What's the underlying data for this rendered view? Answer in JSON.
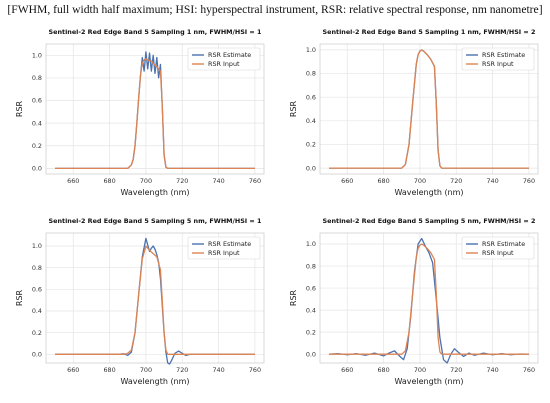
{
  "caption": "[FWHM, full width half maximum; HSI: hyperspectral instrument, RSR: relative spectral response, nm nanometre]",
  "colors": {
    "estimate": "#4c72b0",
    "input": "#dd8452",
    "grid": "#e4e4e4",
    "frame": "#d0d0d0"
  },
  "chart_data": [
    {
      "type": "line",
      "title": "Sentinel-2 Red Edge Band 5 Sampling 1 nm, FWHM/HSI = 1",
      "xlabel": "Wavelength (nm)",
      "ylabel": "RSR",
      "xlim": [
        645,
        765
      ],
      "ylim": [
        -0.05,
        1.1
      ],
      "xticks": [
        660,
        680,
        700,
        720,
        740,
        760
      ],
      "yticks": [
        0.0,
        0.2,
        0.4,
        0.6,
        0.8,
        1.0
      ],
      "ytick_labels": [
        "0.0",
        "0.2",
        "0.4",
        "0.6",
        "0.8",
        "1.0"
      ],
      "grid": true,
      "legend": "top-right",
      "series": [
        {
          "name": "RSR Estimate",
          "color": "#4c72b0",
          "x": [
            650,
            690,
            692,
            693,
            694,
            695,
            696,
            697,
            698,
            699,
            700,
            701,
            702,
            703,
            704,
            705,
            706,
            707,
            708,
            709,
            710,
            711,
            712,
            760
          ],
          "y": [
            0,
            0,
            0.03,
            0.08,
            0.2,
            0.4,
            0.62,
            0.82,
            0.98,
            0.86,
            1.03,
            0.88,
            1.02,
            0.86,
            1.0,
            0.84,
            0.98,
            0.8,
            0.92,
            0.55,
            0.12,
            0.01,
            0,
            0
          ]
        },
        {
          "name": "RSR Input",
          "color": "#dd8452",
          "x": [
            650,
            690,
            692,
            693,
            694,
            695,
            696,
            697,
            698,
            699,
            700,
            701,
            702,
            703,
            704,
            705,
            706,
            707,
            708,
            709,
            710,
            711,
            712,
            760
          ],
          "y": [
            0,
            0,
            0.03,
            0.08,
            0.2,
            0.4,
            0.62,
            0.82,
            0.93,
            0.96,
            0.97,
            0.96,
            0.95,
            0.95,
            0.93,
            0.91,
            0.9,
            0.88,
            0.86,
            0.55,
            0.12,
            0.01,
            0,
            0
          ]
        }
      ]
    },
    {
      "type": "line",
      "title": "Sentinel-2 Red Edge Band 5 Sampling 1 nm, FWHM/HSI = 2",
      "xlabel": "Wavelength (nm)",
      "ylabel": "RSR",
      "xlim": [
        645,
        765
      ],
      "ylim": [
        -0.05,
        1.05
      ],
      "xticks": [
        660,
        680,
        700,
        720,
        740,
        760
      ],
      "yticks": [
        0.0,
        0.2,
        0.4,
        0.6,
        0.8,
        1.0
      ],
      "ytick_labels": [
        "0.0",
        "0.2",
        "0.4",
        "0.6",
        "0.8",
        "1.0"
      ],
      "grid": true,
      "legend": "top-right",
      "series": [
        {
          "name": "RSR Estimate",
          "color": "#4c72b0",
          "x": [
            650,
            690,
            692,
            694,
            696,
            698,
            699,
            700,
            701,
            702,
            704,
            706,
            708,
            709,
            710,
            711,
            712,
            760
          ],
          "y": [
            0,
            0,
            0.03,
            0.2,
            0.55,
            0.88,
            0.96,
            0.99,
            1.0,
            0.99,
            0.96,
            0.92,
            0.86,
            0.55,
            0.15,
            0.02,
            0,
            0
          ]
        },
        {
          "name": "RSR Input",
          "color": "#dd8452",
          "x": [
            650,
            690,
            692,
            694,
            696,
            698,
            699,
            700,
            701,
            702,
            704,
            706,
            708,
            709,
            710,
            711,
            712,
            760
          ],
          "y": [
            0,
            0,
            0.03,
            0.2,
            0.55,
            0.88,
            0.96,
            0.99,
            1.0,
            0.99,
            0.96,
            0.92,
            0.86,
            0.55,
            0.15,
            0.02,
            0,
            0
          ]
        }
      ]
    },
    {
      "type": "line",
      "title": "Sentinel-2 Red Edge Band 5 Sampling 5 nm, FWHM/HSI = 1",
      "xlabel": "Wavelength (nm)",
      "ylabel": "RSR",
      "xlim": [
        645,
        765
      ],
      "ylim": [
        -0.08,
        1.12
      ],
      "xticks": [
        660,
        680,
        700,
        720,
        740,
        760
      ],
      "yticks": [
        0.0,
        0.2,
        0.4,
        0.6,
        0.8,
        1.0
      ],
      "ytick_labels": [
        "0.0",
        "0.2",
        "0.4",
        "0.6",
        "0.8",
        "1.0"
      ],
      "grid": true,
      "legend": "top-right",
      "series": [
        {
          "name": "RSR Estimate",
          "color": "#4c72b0",
          "x": [
            650,
            685,
            688,
            690,
            692,
            694,
            696,
            698,
            700,
            702,
            703,
            704,
            705,
            706,
            707,
            708,
            709,
            710,
            711,
            712,
            713,
            714,
            716,
            718,
            720,
            722,
            724,
            760
          ],
          "y": [
            0,
            0,
            0.005,
            -0.01,
            0.02,
            0.2,
            0.55,
            0.9,
            1.07,
            0.95,
            0.98,
            1.0,
            0.97,
            0.92,
            0.85,
            0.7,
            0.45,
            0.2,
            0.02,
            -0.08,
            -0.09,
            -0.06,
            0.01,
            0.03,
            0.01,
            -0.01,
            0,
            0
          ]
        },
        {
          "name": "RSR Input",
          "color": "#dd8452",
          "x": [
            650,
            688,
            690,
            692,
            694,
            696,
            698,
            700,
            702,
            704,
            706,
            708,
            709,
            710,
            711,
            712,
            760
          ],
          "y": [
            0,
            0,
            0.01,
            0.04,
            0.2,
            0.55,
            0.88,
            1.0,
            0.96,
            0.93,
            0.9,
            0.78,
            0.5,
            0.2,
            0.04,
            0,
            0
          ]
        }
      ]
    },
    {
      "type": "line",
      "title": "Sentinel-2 Red Edge Band 5 Sampling 5 nm, FWHM/HSI = 2",
      "xlabel": "Wavelength (nm)",
      "ylabel": "RSR",
      "xlim": [
        645,
        765
      ],
      "ylim": [
        -0.08,
        1.1
      ],
      "xticks": [
        660,
        680,
        700,
        720,
        740,
        760
      ],
      "yticks": [
        0.0,
        0.2,
        0.4,
        0.6,
        0.8,
        1.0
      ],
      "ytick_labels": [
        "0.0",
        "0.2",
        "0.4",
        "0.6",
        "0.8",
        "1.0"
      ],
      "grid": true,
      "legend": "top-right",
      "series": [
        {
          "name": "RSR Estimate",
          "color": "#4c72b0",
          "x": [
            650,
            655,
            660,
            665,
            670,
            675,
            680,
            683,
            686,
            689,
            691,
            693,
            695,
            697,
            699,
            701,
            703,
            705,
            707,
            709,
            711,
            713,
            715,
            717,
            719,
            721,
            724,
            727,
            730,
            735,
            740,
            745,
            750,
            755,
            760
          ],
          "y": [
            0,
            0.005,
            -0.005,
            0.005,
            -0.01,
            0.01,
            -0.015,
            0.01,
            0.03,
            -0.02,
            -0.05,
            0.05,
            0.35,
            0.75,
            1.0,
            1.05,
            0.98,
            0.92,
            0.83,
            0.5,
            0.15,
            -0.05,
            -0.08,
            0.0,
            0.05,
            0.02,
            -0.02,
            0.01,
            -0.01,
            0.01,
            -0.005,
            0.005,
            -0.005,
            0.002,
            0
          ]
        },
        {
          "name": "RSR Input",
          "color": "#dd8452",
          "x": [
            650,
            690,
            692,
            694,
            696,
            698,
            699,
            700,
            701,
            702,
            704,
            706,
            708,
            709,
            710,
            711,
            712,
            760
          ],
          "y": [
            0,
            0,
            0.03,
            0.2,
            0.55,
            0.88,
            0.96,
            0.99,
            1.0,
            0.99,
            0.96,
            0.92,
            0.86,
            0.55,
            0.15,
            0.02,
            0,
            0
          ]
        }
      ]
    }
  ]
}
